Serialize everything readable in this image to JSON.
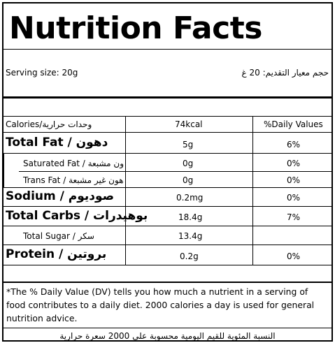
{
  "title": "Nutrition Facts",
  "serving": {
    "label_en": "Serving size: 20g",
    "label_ar": "حجم معيار التقديم: 20 غ"
  },
  "header": {
    "calories_label": "Calories/وحدات حرارية",
    "calories_value": "74kcal",
    "dv_header": "%Daily Values"
  },
  "rows": [
    {
      "name": "Total Fat / دهون",
      "amount": "5g",
      "dv": "6%"
    },
    {
      "name": "Saturated Fat / ون مشبعة",
      "amount": "0g",
      "dv": "0%"
    },
    {
      "name": "Trans Fat / هون غير مشبعة",
      "amount": "0g",
      "dv": "0%"
    },
    {
      "name": "Sodium / صوديوم",
      "amount": "0.2mg",
      "dv": "0%"
    },
    {
      "name": "Total Carbs / بوهيدرات",
      "amount": "18.4g",
      "dv": "7%"
    },
    {
      "name": "Total Sugar / سكر",
      "amount": "13.4g",
      "dv": ""
    },
    {
      "name": "Protein / بروتين",
      "amount": "0.2g",
      "dv": "0%"
    }
  ],
  "footnote_en": "*The % Daily Value (DV) tells you how much a nutrient in a serving of food contributes to a daily diet. 2000 calories a day is used for general nutrition advice.",
  "footnote_ar": "النسبة المئوية للقيم اليومية محسوبة على 2000 سعرة حرارية"
}
